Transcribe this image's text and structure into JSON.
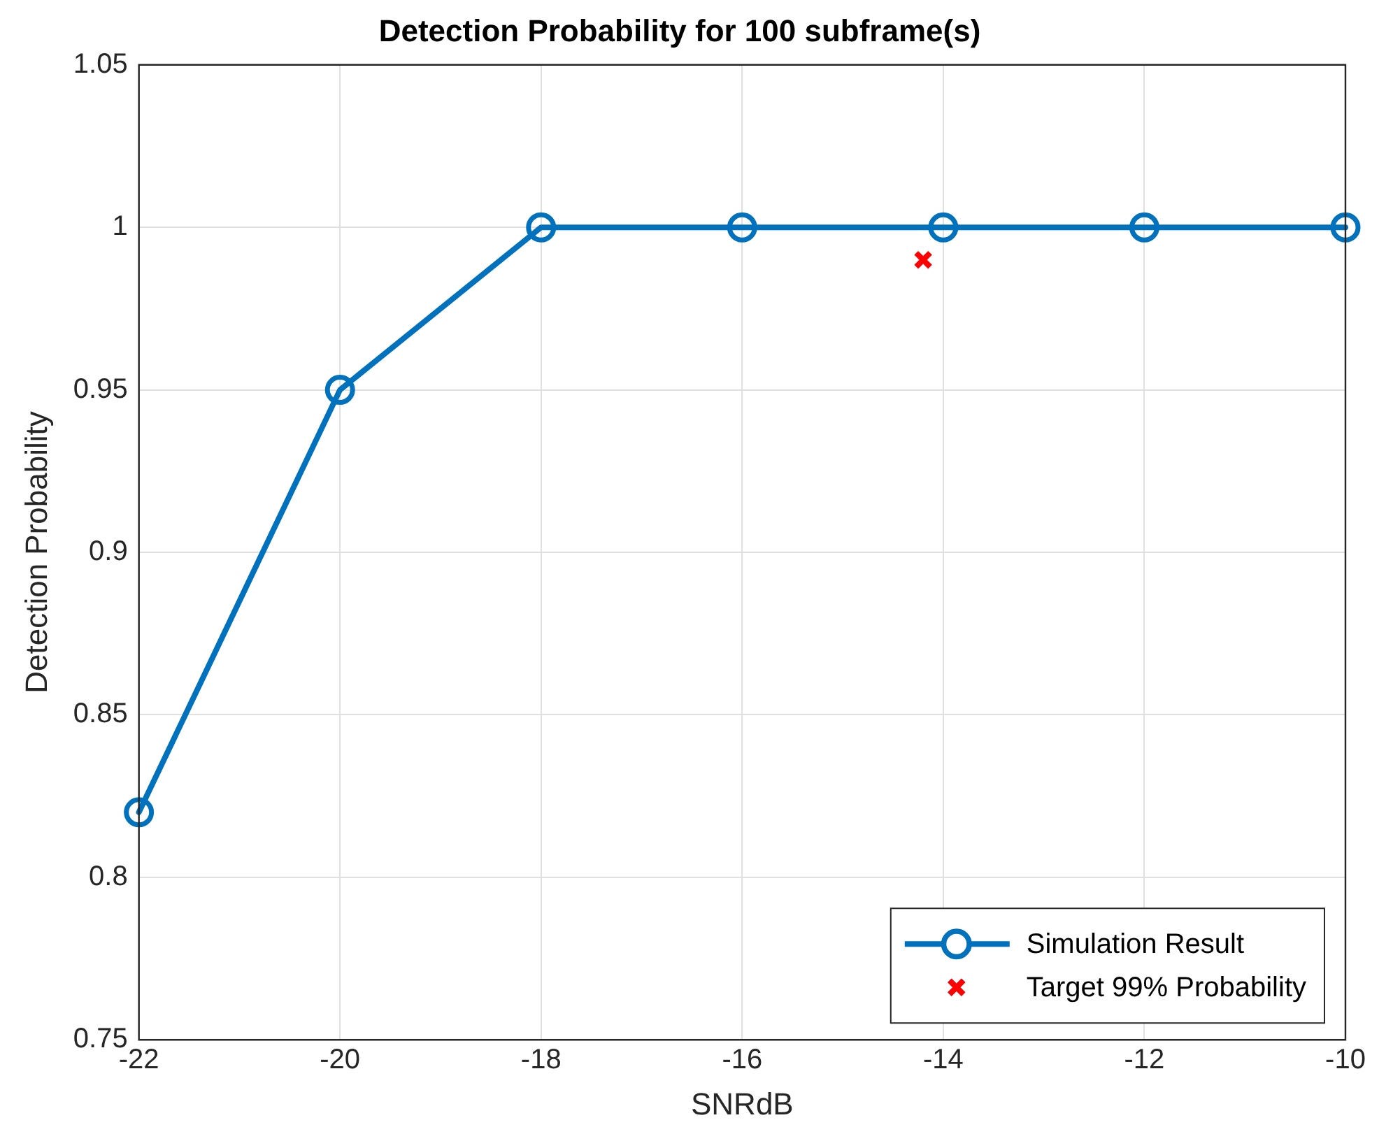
{
  "chart_data": {
    "type": "line",
    "title": "Detection Probability for 100 subframe(s)",
    "xlabel": "SNRdB",
    "ylabel": "Detection Probability",
    "x": [
      -22,
      -20,
      -18,
      -16,
      -14,
      -12,
      -10
    ],
    "series": [
      {
        "name": "Simulation Result",
        "color": "#0072bd",
        "marker": "circle",
        "values": [
          0.82,
          0.95,
          1,
          1,
          1,
          1,
          1
        ]
      },
      {
        "name": "Target 99% Probability",
        "type": "scatter",
        "color": "#ff0000",
        "marker": "cross",
        "x": [
          -14.2
        ],
        "values": [
          0.99
        ]
      }
    ],
    "xlim": [
      -22,
      -10
    ],
    "xticks": [
      -22,
      -20,
      -18,
      -16,
      -14,
      -12,
      -10
    ],
    "ylim": [
      0.75,
      1.05
    ],
    "yticks": [
      0.75,
      0.8,
      0.85,
      0.9,
      0.95,
      1,
      1.05
    ],
    "grid": true,
    "legend": "bottom right"
  }
}
